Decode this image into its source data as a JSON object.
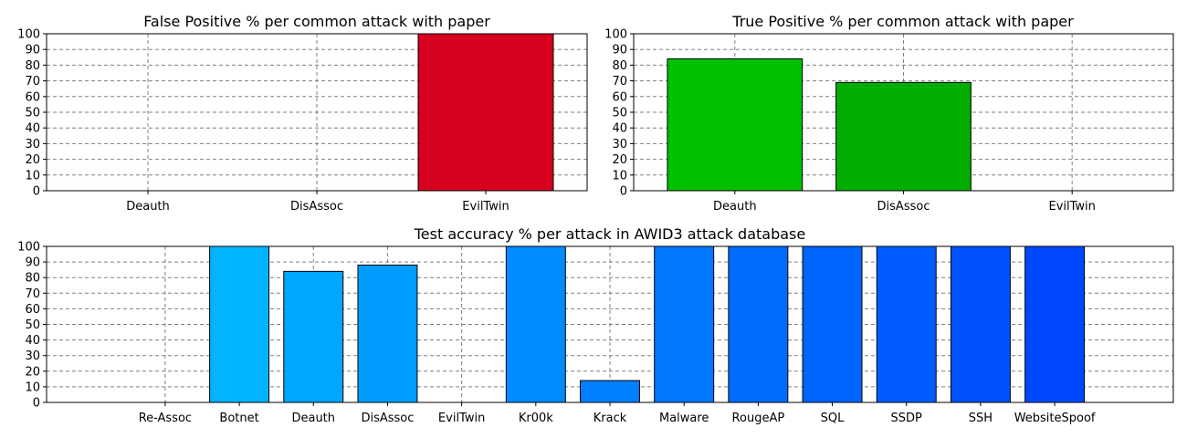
{
  "chart_data": [
    {
      "type": "bar",
      "title": "False Positive % per common attack with paper",
      "categories": [
        "Deauth",
        "DisAssoc",
        "EvilTwin"
      ],
      "values": [
        0,
        0,
        100
      ],
      "colors": [
        "#d7001e",
        "#d7001e",
        "#d7001e"
      ],
      "ylim": [
        0,
        100
      ],
      "yticks": [
        0,
        10,
        20,
        30,
        40,
        50,
        60,
        70,
        80,
        90,
        100
      ],
      "grid": true
    },
    {
      "type": "bar",
      "title": "True Positive % per common attack with paper",
      "categories": [
        "Deauth",
        "DisAssoc",
        "EvilTwin"
      ],
      "values": [
        84,
        69,
        0
      ],
      "colors": [
        "#00c000",
        "#00ad00",
        "#009a00"
      ],
      "ylim": [
        0,
        100
      ],
      "yticks": [
        0,
        10,
        20,
        30,
        40,
        50,
        60,
        70,
        80,
        90,
        100
      ],
      "grid": true
    },
    {
      "type": "bar",
      "title": "Test accuracy % per attack in AWID3 attack database",
      "categories": [
        "Re-Assoc",
        "Botnet",
        "Deauth",
        "DisAssoc",
        "EvilTwin",
        "Kr00k",
        "Krack",
        "Malware",
        "RougeAP",
        "SQL",
        "SSDP",
        "SSH",
        "WebsiteSpoof"
      ],
      "values": [
        0,
        100,
        84,
        88,
        0,
        100,
        14,
        100,
        100,
        100,
        100,
        100,
        100
      ],
      "colors": [
        "#00c8ff",
        "#00b4ff",
        "#00a8ff",
        "#009cff",
        "#0094ff",
        "#008cff",
        "#0080ff",
        "#0078ff",
        "#006cff",
        "#0064ff",
        "#005cff",
        "#0052ff",
        "#0048ff"
      ],
      "ylim": [
        0,
        100
      ],
      "yticks": [
        0,
        10,
        20,
        30,
        40,
        50,
        60,
        70,
        80,
        90,
        100
      ],
      "grid": true
    }
  ]
}
